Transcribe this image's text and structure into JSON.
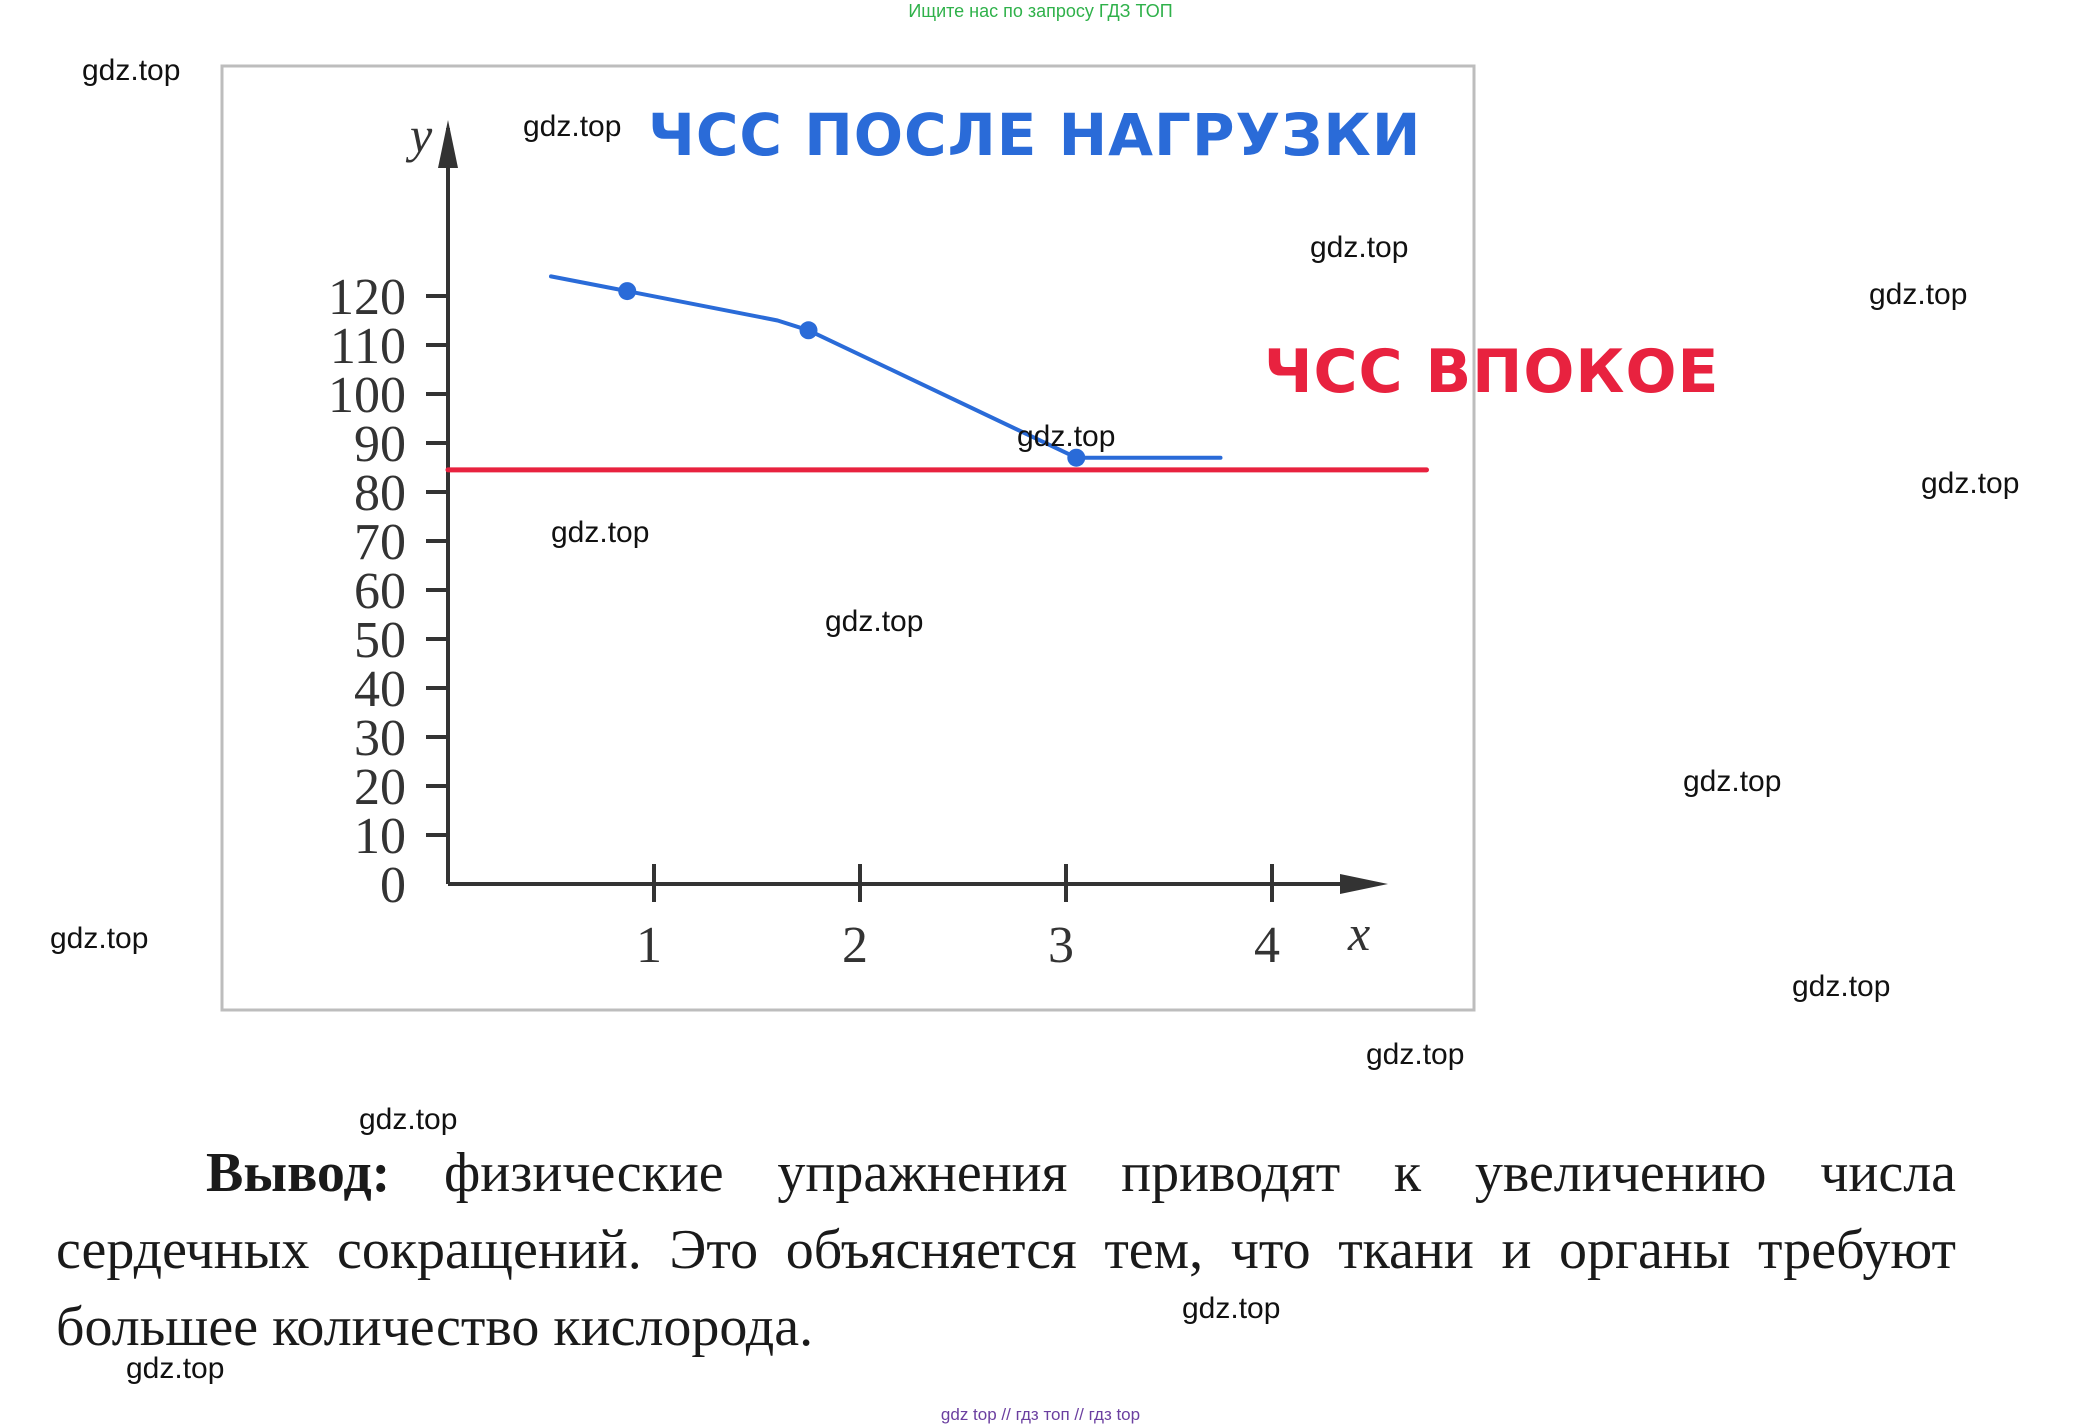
{
  "header_note": "Ищите нас по запросу ГДЗ ТОП",
  "footer_note": "gdz top // гдз топ // гдз top",
  "watermark_text": "gdz.top",
  "chart_data": {
    "type": "line",
    "x_axis_label": "x",
    "y_axis_label": "y",
    "x_ticks": [
      1,
      2,
      3,
      4
    ],
    "y_ticks": [
      0,
      10,
      20,
      30,
      40,
      50,
      60,
      70,
      80,
      90,
      100,
      110,
      120
    ],
    "xlim": [
      0,
      4.5
    ],
    "ylim": [
      0,
      125
    ],
    "grid": false,
    "series": [
      {
        "name": "ЧСС после нагрузки",
        "color": "#2a6bd8",
        "x": [
          0.5,
          0.87,
          1.6,
          1.75,
          3.05,
          3.65,
          3.75
        ],
        "y": [
          124,
          121,
          115,
          113,
          87,
          87,
          87
        ],
        "markers_x": [
          0.87,
          1.75,
          3.05
        ],
        "markers_y": [
          121,
          113,
          87
        ]
      },
      {
        "name": "ЧСС впокое",
        "color": "#e8223f",
        "x": [
          0,
          4.75
        ],
        "y": [
          84.5,
          84.5
        ]
      }
    ]
  },
  "conclusion": {
    "label": "Вывод:",
    "line1": "физические упражнения приводят к увеличению числа",
    "line2": "сердечных сокращений. Это объясняется тем, что ткани и органы требуют",
    "line3": "большее количество кислорода."
  }
}
